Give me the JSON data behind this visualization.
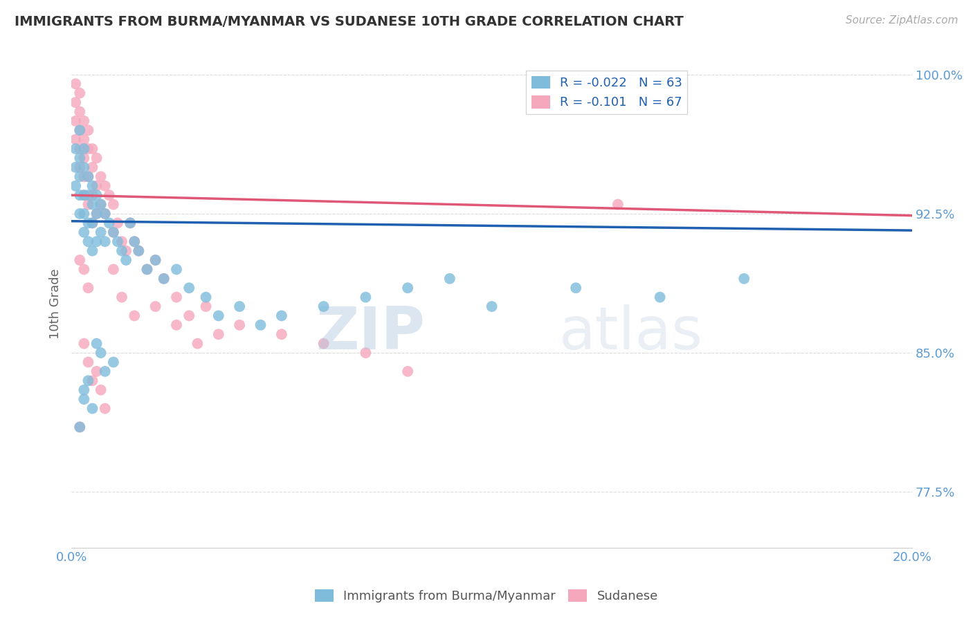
{
  "title": "IMMIGRANTS FROM BURMA/MYANMAR VS SUDANESE 10TH GRADE CORRELATION CHART",
  "source": "Source: ZipAtlas.com",
  "ylabel": "10th Grade",
  "r_blue": -0.022,
  "n_blue": 63,
  "r_pink": -0.101,
  "n_pink": 67,
  "xlim": [
    0.0,
    0.2
  ],
  "ylim": [
    0.745,
    1.008
  ],
  "yticks": [
    0.775,
    0.85,
    0.925,
    1.0
  ],
  "ytick_labels": [
    "77.5%",
    "85.0%",
    "92.5%",
    "100.0%"
  ],
  "color_blue": "#7fbcdb",
  "color_pink": "#f5a8bc",
  "line_color_blue": "#2060b0",
  "line_color_pink": "#e05878",
  "background_color": "#ffffff",
  "grid_color": "#cccccc",
  "watermark": "ZIPatlas",
  "blue_x": [
    0.001,
    0.001,
    0.001,
    0.002,
    0.002,
    0.002,
    0.002,
    0.002,
    0.003,
    0.003,
    0.003,
    0.003,
    0.003,
    0.004,
    0.004,
    0.004,
    0.004,
    0.005,
    0.005,
    0.005,
    0.005,
    0.006,
    0.006,
    0.006,
    0.007,
    0.007,
    0.008,
    0.008,
    0.009,
    0.01,
    0.011,
    0.012,
    0.013,
    0.014,
    0.015,
    0.016,
    0.018,
    0.02,
    0.022,
    0.025,
    0.028,
    0.032,
    0.035,
    0.04,
    0.045,
    0.05,
    0.06,
    0.07,
    0.08,
    0.09,
    0.1,
    0.12,
    0.14,
    0.16,
    0.003,
    0.004,
    0.005,
    0.002,
    0.003,
    0.006,
    0.007,
    0.008,
    0.01
  ],
  "blue_y": [
    0.96,
    0.95,
    0.94,
    0.97,
    0.955,
    0.945,
    0.935,
    0.925,
    0.96,
    0.95,
    0.935,
    0.925,
    0.915,
    0.945,
    0.935,
    0.92,
    0.91,
    0.94,
    0.93,
    0.92,
    0.905,
    0.935,
    0.925,
    0.91,
    0.93,
    0.915,
    0.925,
    0.91,
    0.92,
    0.915,
    0.91,
    0.905,
    0.9,
    0.92,
    0.91,
    0.905,
    0.895,
    0.9,
    0.89,
    0.895,
    0.885,
    0.88,
    0.87,
    0.875,
    0.865,
    0.87,
    0.875,
    0.88,
    0.885,
    0.89,
    0.875,
    0.885,
    0.88,
    0.89,
    0.83,
    0.835,
    0.82,
    0.81,
    0.825,
    0.855,
    0.85,
    0.84,
    0.845
  ],
  "pink_x": [
    0.001,
    0.001,
    0.001,
    0.001,
    0.002,
    0.002,
    0.002,
    0.002,
    0.002,
    0.003,
    0.003,
    0.003,
    0.003,
    0.003,
    0.004,
    0.004,
    0.004,
    0.004,
    0.005,
    0.005,
    0.005,
    0.005,
    0.006,
    0.006,
    0.006,
    0.007,
    0.007,
    0.008,
    0.008,
    0.009,
    0.01,
    0.01,
    0.011,
    0.012,
    0.013,
    0.014,
    0.015,
    0.016,
    0.018,
    0.02,
    0.022,
    0.025,
    0.028,
    0.032,
    0.035,
    0.04,
    0.05,
    0.06,
    0.07,
    0.08,
    0.003,
    0.004,
    0.005,
    0.006,
    0.007,
    0.008,
    0.002,
    0.003,
    0.004,
    0.01,
    0.012,
    0.015,
    0.02,
    0.025,
    0.03,
    0.13,
    0.002
  ],
  "pink_y": [
    0.995,
    0.985,
    0.975,
    0.965,
    0.99,
    0.98,
    0.97,
    0.96,
    0.95,
    0.975,
    0.965,
    0.955,
    0.945,
    0.935,
    0.97,
    0.96,
    0.945,
    0.93,
    0.96,
    0.95,
    0.935,
    0.92,
    0.955,
    0.94,
    0.925,
    0.945,
    0.93,
    0.94,
    0.925,
    0.935,
    0.93,
    0.915,
    0.92,
    0.91,
    0.905,
    0.92,
    0.91,
    0.905,
    0.895,
    0.9,
    0.89,
    0.88,
    0.87,
    0.875,
    0.86,
    0.865,
    0.86,
    0.855,
    0.85,
    0.84,
    0.855,
    0.845,
    0.835,
    0.84,
    0.83,
    0.82,
    0.9,
    0.895,
    0.885,
    0.895,
    0.88,
    0.87,
    0.875,
    0.865,
    0.855,
    0.93,
    0.81
  ],
  "blue_trend_x0": 0.0,
  "blue_trend_x1": 0.2,
  "blue_trend_y0": 0.921,
  "blue_trend_y1": 0.916,
  "pink_trend_x0": 0.0,
  "pink_trend_x1": 0.2,
  "pink_trend_y0": 0.935,
  "pink_trend_y1": 0.924
}
